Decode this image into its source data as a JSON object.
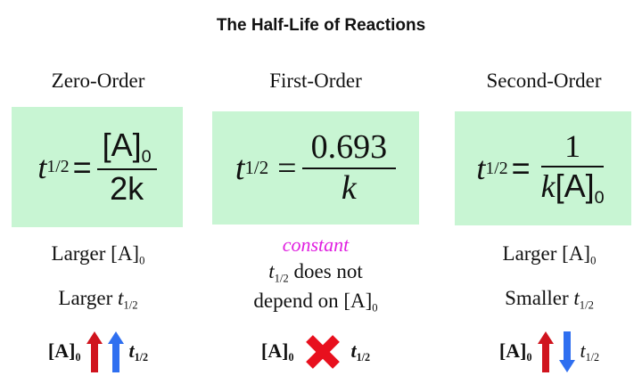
{
  "title": "The Half-Life of Reactions",
  "colors": {
    "formula_box": "#c8f5d3",
    "up_arrow_red": "#d0141e",
    "arrow_blue": "#2f6ff0",
    "cross_red": "#e8101e",
    "constant_text": "#e020e0"
  },
  "columns": [
    {
      "heading": "Zero-Order",
      "formula": {
        "lhs": "t",
        "lhs_sub": "1/2",
        "eq": "=",
        "numerator": "[A]",
        "numerator_sub": "0",
        "denominator": "2k"
      },
      "line1": "Larger [A]",
      "line1_sub": "0",
      "line2": "Larger ",
      "line2_t": "t",
      "line2_sub": "1/2",
      "relation": {
        "a": "[A]",
        "a_sub": "0",
        "icons": [
          "arrow-up-red",
          "arrow-up-blue"
        ],
        "t": "t",
        "t_sub": "1/2"
      }
    },
    {
      "heading": "First-Order",
      "formula": {
        "lhs": "t",
        "lhs_sub": "1/2",
        "eq": "=",
        "numerator": "0.693",
        "denominator": "k"
      },
      "note": "constant",
      "line1_t": "t",
      "line1_sub": "1/2",
      "line1": " does not",
      "line2": "depend on [A]",
      "line2_sub": "0",
      "relation": {
        "a": "[A]",
        "a_sub": "0",
        "icons": [
          "cross-red"
        ],
        "t": "t",
        "t_sub": "1/2"
      }
    },
    {
      "heading": "Second-Order",
      "formula": {
        "lhs": "t",
        "lhs_sub": "1/2",
        "eq": "=",
        "numerator": "1",
        "denominator_k": "k",
        "denominator": "[A]",
        "denominator_sub": "0"
      },
      "line1": "Larger [A]",
      "line1_sub": "0",
      "line2": "Smaller ",
      "line2_t": "t",
      "line2_sub": "1/2",
      "relation": {
        "a": "[A]",
        "a_sub": "0",
        "icons": [
          "arrow-up-red",
          "arrow-down-blue"
        ],
        "t": "t",
        "t_sub": "1/2"
      }
    }
  ]
}
